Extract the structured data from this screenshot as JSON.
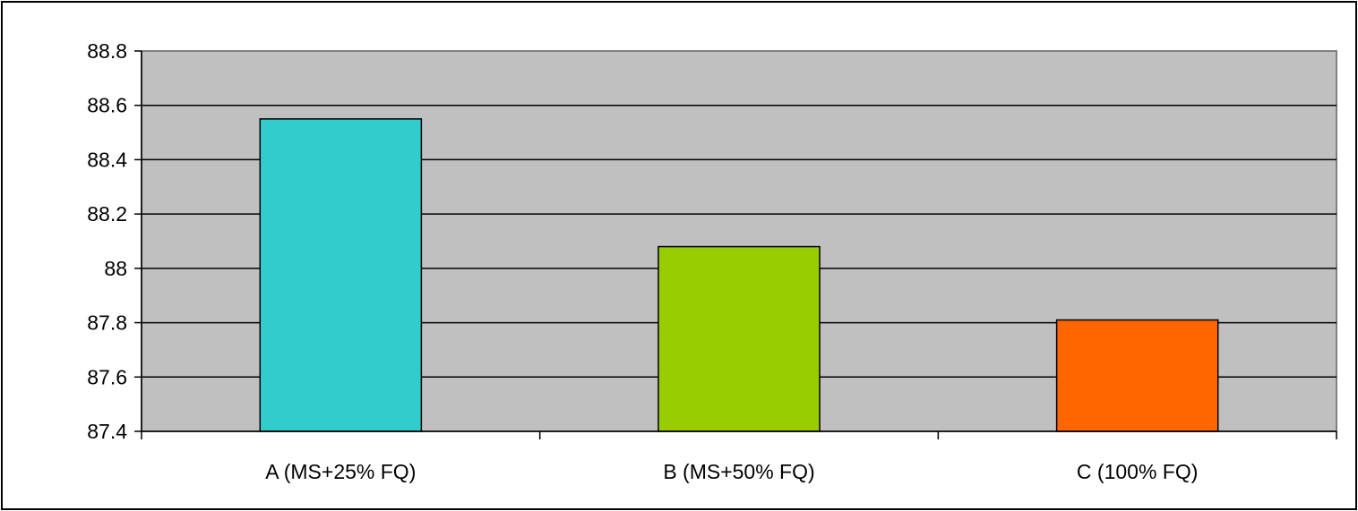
{
  "chart_data": {
    "type": "bar",
    "title": "",
    "xlabel": "",
    "ylabel": "",
    "categories": [
      "A (MS+25% FQ)",
      "B (MS+50% FQ)",
      "C (100% FQ)"
    ],
    "values": [
      88.55,
      88.08,
      87.81
    ],
    "colors": [
      "#33CCCC",
      "#99CC00",
      "#FF6600"
    ],
    "ylim": [
      87.4,
      88.8
    ],
    "yticks": [
      "87.4",
      "87.6",
      "87.8",
      "88",
      "88.2",
      "88.4",
      "88.6",
      "88.8"
    ],
    "grid": true,
    "plot_background": "#C0C0C0",
    "legend": "none"
  }
}
